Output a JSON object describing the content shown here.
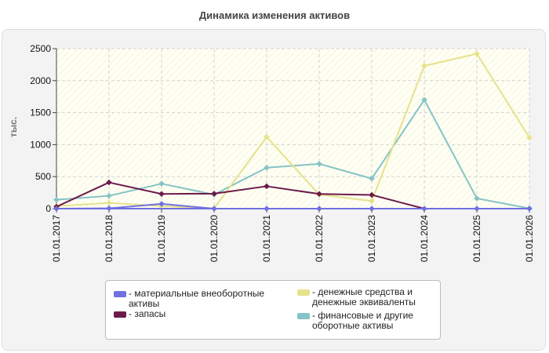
{
  "chart_data": {
    "type": "line",
    "title": "Динамика изменения активов",
    "ylabel": "тыс.",
    "xlabel": "",
    "categories": [
      "01.01.2017",
      "01.01.2018",
      "01.01.2019",
      "01.01.2020",
      "01.01.2021",
      "01.01.2022",
      "01.01.2023",
      "01.01.2024",
      "01.01.2025",
      "01.01.2026"
    ],
    "ylim": [
      0,
      2500
    ],
    "yticks": [
      0,
      500,
      1000,
      1500,
      2000,
      2500
    ],
    "grid": true,
    "legend_position": "bottom",
    "series": [
      {
        "name": "- материальные внеоборотные активы",
        "color": "#7070e0",
        "values": [
          0,
          5,
          75,
          0,
          0,
          0,
          0,
          0,
          0,
          0
        ]
      },
      {
        "name": "- запасы",
        "color": "#6b1a4a",
        "values": [
          30,
          410,
          230,
          235,
          350,
          230,
          215,
          0,
          0,
          0
        ]
      },
      {
        "name": "- денежные средства и денежные эквиваленты",
        "color": "#e5e28a",
        "values": [
          40,
          90,
          40,
          5,
          1120,
          220,
          120,
          2230,
          2420,
          1110
        ]
      },
      {
        "name": "- финансовые и другие оборотные активы",
        "color": "#86c3c6",
        "values": [
          140,
          200,
          390,
          220,
          640,
          700,
          470,
          1700,
          160,
          5
        ]
      }
    ]
  },
  "legend": {
    "items": [
      {
        "label": "- материальные внеоборотные активы",
        "color": "#7070e0"
      },
      {
        "label": "- запасы",
        "color": "#6b1a4a"
      },
      {
        "label": "- денежные средства и денежные эквиваленты",
        "color": "#e5e28a"
      },
      {
        "label": "- финансовые и другие оборотные активы",
        "color": "#86c3c6"
      }
    ]
  }
}
